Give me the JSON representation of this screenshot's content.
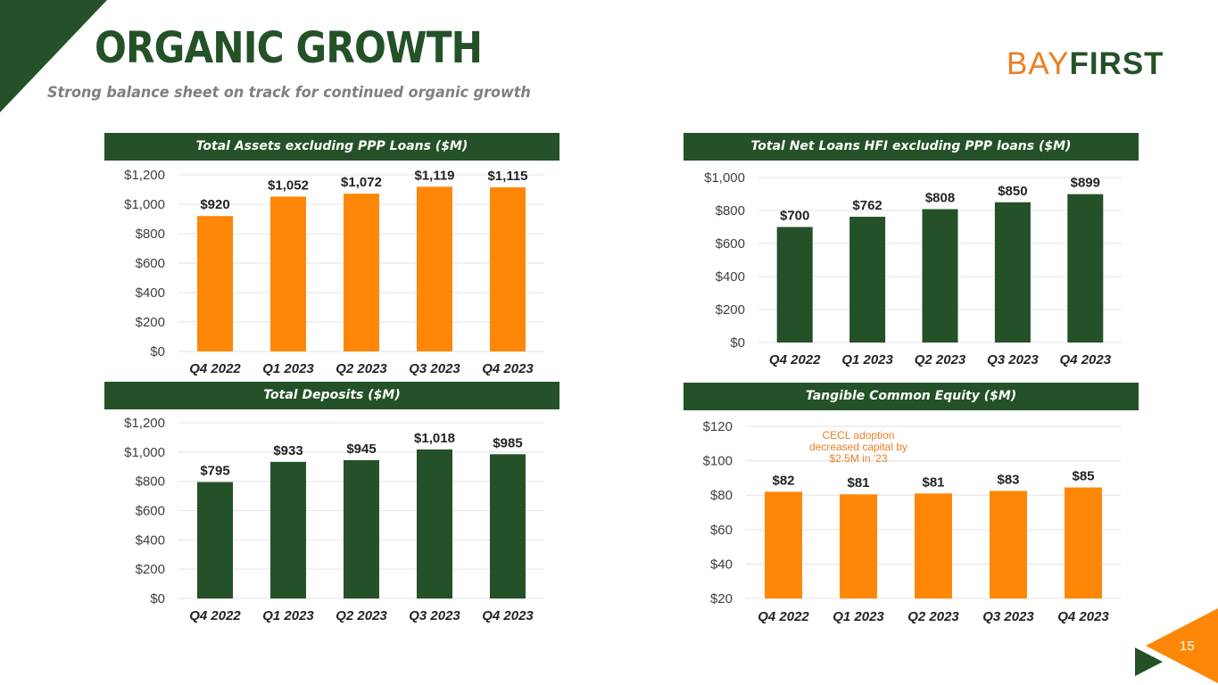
{
  "header": {
    "title": "ORGANIC GROWTH",
    "subtitle": "Strong balance sheet on track for continued organic growth",
    "logo_left": "BAY",
    "logo_right": "FIRST"
  },
  "page_number": "15",
  "colors": {
    "green": "#245127",
    "orange": "#ff8707",
    "accent": "#ec7e22"
  },
  "chart_data": [
    {
      "id": "assets",
      "type": "bar",
      "title": "Total Assets excluding PPP Loans ($M)",
      "categories": [
        "Q4 2022",
        "Q1 2023",
        "Q2 2023",
        "Q3 2023",
        "Q4 2023"
      ],
      "values": [
        920,
        1052,
        1072,
        1119,
        1115
      ],
      "labels": [
        "$920",
        "$1,052",
        "$1,072",
        "$1,119",
        "$1,115"
      ],
      "ylim": [
        0,
        1200
      ],
      "ticks": [
        0,
        200,
        400,
        600,
        800,
        1000,
        1200
      ],
      "tick_labels": [
        "$0",
        "$200",
        "$400",
        "$600",
        "$800",
        "$1,000",
        "$1,200"
      ],
      "color": "#ff8707"
    },
    {
      "id": "loans",
      "type": "bar",
      "title": "Total Net Loans HFI excluding PPP loans  ($M)",
      "categories": [
        "Q4 2022",
        "Q1 2023",
        "Q2 2023",
        "Q3 2023",
        "Q4 2023"
      ],
      "values": [
        700,
        762,
        808,
        850,
        899
      ],
      "labels": [
        "$700",
        "$762",
        "$808",
        "$850",
        "$899"
      ],
      "ylim": [
        0,
        1000
      ],
      "ticks": [
        0,
        200,
        400,
        600,
        800,
        1000
      ],
      "tick_labels": [
        "$0",
        "$200",
        "$400",
        "$600",
        "$800",
        "$1,000"
      ],
      "color": "#245127"
    },
    {
      "id": "deposits",
      "type": "bar",
      "title": "Total Deposits ($M)",
      "categories": [
        "Q4 2022",
        "Q1 2023",
        "Q2 2023",
        "Q3 2023",
        "Q4 2023"
      ],
      "values": [
        795,
        933,
        945,
        1018,
        985
      ],
      "labels": [
        "$795",
        "$933",
        "$945",
        "$1,018",
        "$985"
      ],
      "ylim": [
        0,
        1200
      ],
      "ticks": [
        0,
        200,
        400,
        600,
        800,
        1000,
        1200
      ],
      "tick_labels": [
        "$0",
        "$200",
        "$400",
        "$600",
        "$800",
        "$1,000",
        "$1,200"
      ],
      "color": "#245127"
    },
    {
      "id": "equity",
      "type": "bar",
      "title": "Tangible Common Equity ($M)",
      "categories": [
        "Q4 2022",
        "Q1 2023",
        "Q2 2023",
        "Q3 2023",
        "Q4 2023"
      ],
      "values": [
        82,
        80.5,
        81,
        82.5,
        84.5
      ],
      "labels": [
        "$82",
        "$81",
        "$81",
        "$83",
        "$85"
      ],
      "ylim": [
        20,
        120
      ],
      "ticks": [
        20,
        40,
        60,
        80,
        100,
        120
      ],
      "tick_labels": [
        "$20",
        "$40",
        "$60",
        "$80",
        "$100",
        "$120"
      ],
      "color": "#ff8707",
      "annotation": [
        "CECL adoption",
        "decreased capital by",
        "$2.5M in '23"
      ]
    }
  ]
}
